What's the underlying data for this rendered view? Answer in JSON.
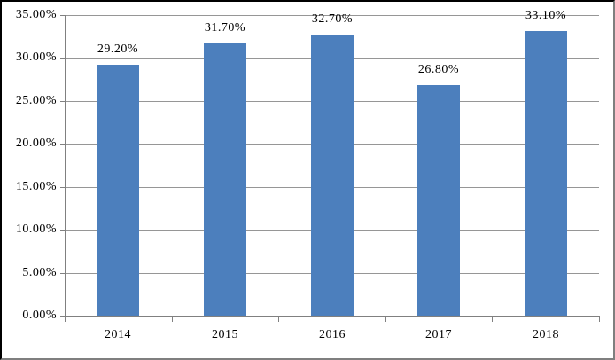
{
  "chart_data": {
    "type": "bar",
    "title": "",
    "xlabel": "",
    "ylabel": "",
    "categories": [
      "2014",
      "2015",
      "2016",
      "2017",
      "2018"
    ],
    "values": [
      29.2,
      31.7,
      32.7,
      26.8,
      33.1
    ],
    "data_labels": [
      "29.20%",
      "31.70%",
      "32.70%",
      "26.80%",
      "33.10%"
    ],
    "ylim": [
      0,
      35
    ],
    "y_tick_step": 5,
    "y_tick_labels": [
      "0.00%",
      "5.00%",
      "10.00%",
      "15.00%",
      "20.00%",
      "25.00%",
      "30.00%",
      "35.00%"
    ],
    "grid": true,
    "legend": "none",
    "colors": {
      "bar": "#4C7FBD",
      "gridline": "#969696",
      "axis": "#808080",
      "text": "#000000",
      "background": "#FFFFFF",
      "frame_dark": "#000000",
      "frame_light": "#7F7F7F"
    }
  }
}
